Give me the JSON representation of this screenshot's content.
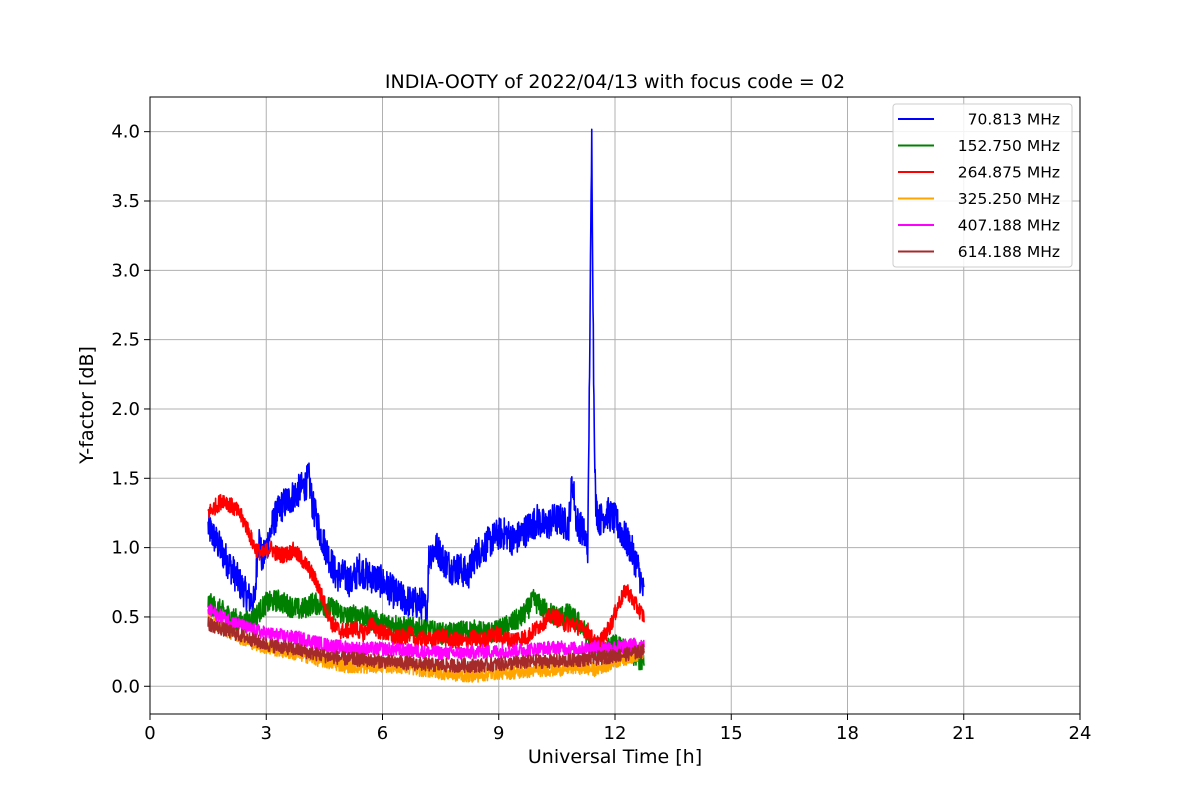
{
  "chart_data": {
    "type": "line",
    "title": "INDIA-OOTY of 2022/04/13 with focus code = 02",
    "xlabel": "Universal Time [h]",
    "ylabel": "Y-factor [dB]",
    "xlim": [
      0,
      24
    ],
    "ylim": [
      -0.2,
      4.25
    ],
    "xticks": [
      "0",
      "3",
      "6",
      "9",
      "12",
      "15",
      "18",
      "21",
      "24"
    ],
    "yticks": [
      "0.0",
      "0.5",
      "1.0",
      "1.5",
      "2.0",
      "2.5",
      "3.0",
      "3.5",
      "4.0"
    ],
    "grid": true,
    "legend_position": "top-right",
    "series": [
      {
        "name": "70.813 MHz",
        "color": "#0000ff",
        "x": [
          1.5,
          1.7,
          1.9,
          2.1,
          2.3,
          2.5,
          2.7,
          2.8,
          2.9,
          3.0,
          3.2,
          3.4,
          3.6,
          3.8,
          4.0,
          4.1,
          4.2,
          4.4,
          4.6,
          4.8,
          5.0,
          5.2,
          5.4,
          5.6,
          5.8,
          6.0,
          6.2,
          6.4,
          6.6,
          6.8,
          7.0,
          7.15,
          7.2,
          7.4,
          7.6,
          7.8,
          8.0,
          8.2,
          8.4,
          8.6,
          8.8,
          9.0,
          9.2,
          9.4,
          9.6,
          9.8,
          10.0,
          10.2,
          10.4,
          10.6,
          10.8,
          10.9,
          11.0,
          11.2,
          11.3,
          11.35,
          11.4,
          11.45,
          11.5,
          11.6,
          11.8,
          12.0,
          12.2,
          12.4,
          12.6,
          12.75
        ],
        "y": [
          1.15,
          1.05,
          0.95,
          0.85,
          0.75,
          0.65,
          0.6,
          1.1,
          0.9,
          1.0,
          1.2,
          1.3,
          1.35,
          1.4,
          1.45,
          1.5,
          1.3,
          1.1,
          0.95,
          0.8,
          0.8,
          0.75,
          0.85,
          0.8,
          0.78,
          0.75,
          0.7,
          0.65,
          0.62,
          0.6,
          0.6,
          0.55,
          0.95,
          1.0,
          0.9,
          0.85,
          0.85,
          0.8,
          0.95,
          1.0,
          1.05,
          1.1,
          1.1,
          1.05,
          1.1,
          1.15,
          1.2,
          1.15,
          1.2,
          1.2,
          1.15,
          1.5,
          1.2,
          1.1,
          1.0,
          2.5,
          3.95,
          2.2,
          1.3,
          1.2,
          1.25,
          1.2,
          1.1,
          1.0,
          0.85,
          0.65
        ],
        "noise": 0.12
      },
      {
        "name": "152.750 MHz",
        "color": "#008000",
        "x": [
          1.5,
          1.8,
          2.1,
          2.4,
          2.7,
          3.0,
          3.3,
          3.6,
          3.9,
          4.2,
          4.5,
          4.8,
          5.1,
          5.4,
          5.7,
          6.0,
          6.3,
          6.6,
          6.9,
          7.2,
          7.5,
          7.8,
          8.1,
          8.4,
          8.7,
          9.0,
          9.3,
          9.6,
          9.9,
          10.2,
          10.5,
          10.8,
          11.1,
          11.4,
          11.7,
          12.0,
          12.3,
          12.6,
          12.75
        ],
        "y": [
          0.6,
          0.55,
          0.5,
          0.45,
          0.5,
          0.6,
          0.62,
          0.58,
          0.55,
          0.6,
          0.58,
          0.55,
          0.5,
          0.52,
          0.48,
          0.45,
          0.45,
          0.42,
          0.42,
          0.4,
          0.38,
          0.38,
          0.4,
          0.4,
          0.38,
          0.4,
          0.45,
          0.5,
          0.62,
          0.55,
          0.5,
          0.52,
          0.45,
          0.3,
          0.25,
          0.3,
          0.25,
          0.2,
          0.15
        ],
        "noise": 0.08
      },
      {
        "name": "264.875 MHz",
        "color": "#ff0000",
        "x": [
          1.5,
          1.7,
          1.9,
          2.1,
          2.3,
          2.5,
          2.7,
          2.9,
          3.1,
          3.3,
          3.5,
          3.7,
          3.9,
          4.1,
          4.3,
          4.5,
          4.7,
          4.9,
          5.1,
          5.3,
          5.5,
          5.7,
          5.9,
          6.1,
          6.3,
          6.5,
          6.7,
          6.9,
          7.1,
          7.3,
          7.5,
          7.7,
          7.9,
          8.1,
          8.3,
          8.5,
          8.7,
          8.9,
          9.1,
          9.3,
          9.5,
          9.7,
          9.9,
          10.1,
          10.3,
          10.5,
          10.7,
          10.9,
          11.1,
          11.3,
          11.5,
          11.7,
          11.9,
          12.1,
          12.3,
          12.5,
          12.75
        ],
        "y": [
          1.25,
          1.3,
          1.35,
          1.3,
          1.25,
          1.15,
          1.0,
          0.95,
          1.0,
          0.95,
          0.95,
          0.98,
          0.92,
          0.85,
          0.75,
          0.6,
          0.45,
          0.4,
          0.4,
          0.42,
          0.38,
          0.45,
          0.4,
          0.38,
          0.35,
          0.35,
          0.38,
          0.33,
          0.35,
          0.32,
          0.38,
          0.33,
          0.33,
          0.32,
          0.35,
          0.33,
          0.35,
          0.38,
          0.35,
          0.33,
          0.35,
          0.35,
          0.4,
          0.45,
          0.5,
          0.5,
          0.45,
          0.45,
          0.42,
          0.4,
          0.3,
          0.35,
          0.45,
          0.6,
          0.7,
          0.6,
          0.5
        ],
        "noise": 0.06
      },
      {
        "name": "325.250 MHz",
        "color": "#ffa500",
        "x": [
          1.5,
          2.0,
          2.5,
          3.0,
          3.5,
          4.0,
          4.5,
          5.0,
          5.5,
          6.0,
          6.5,
          7.0,
          7.5,
          8.0,
          8.5,
          9.0,
          9.5,
          10.0,
          10.5,
          11.0,
          11.5,
          12.0,
          12.5,
          12.75
        ],
        "y": [
          0.48,
          0.4,
          0.33,
          0.28,
          0.25,
          0.22,
          0.18,
          0.15,
          0.14,
          0.15,
          0.14,
          0.12,
          0.1,
          0.08,
          0.08,
          0.1,
          0.1,
          0.12,
          0.12,
          0.14,
          0.12,
          0.18,
          0.22,
          0.25
        ],
        "noise": 0.05
      },
      {
        "name": "407.188 MHz",
        "color": "#ff00ff",
        "x": [
          1.5,
          2.0,
          2.5,
          3.0,
          3.5,
          4.0,
          4.5,
          5.0,
          5.5,
          6.0,
          6.5,
          7.0,
          7.5,
          8.0,
          8.5,
          9.0,
          9.5,
          10.0,
          10.5,
          11.0,
          11.5,
          12.0,
          12.5,
          12.75
        ],
        "y": [
          0.55,
          0.48,
          0.42,
          0.38,
          0.36,
          0.34,
          0.3,
          0.28,
          0.27,
          0.27,
          0.26,
          0.25,
          0.24,
          0.24,
          0.25,
          0.25,
          0.26,
          0.27,
          0.28,
          0.27,
          0.28,
          0.28,
          0.3,
          0.3
        ],
        "noise": 0.05
      },
      {
        "name": "614.188 MHz",
        "color": "#a52a2a",
        "x": [
          1.5,
          2.0,
          2.5,
          3.0,
          3.5,
          4.0,
          4.5,
          5.0,
          5.5,
          6.0,
          6.5,
          7.0,
          7.5,
          8.0,
          8.5,
          9.0,
          9.5,
          10.0,
          10.5,
          11.0,
          11.5,
          12.0,
          12.5,
          12.75
        ],
        "y": [
          0.45,
          0.4,
          0.35,
          0.3,
          0.28,
          0.25,
          0.22,
          0.2,
          0.19,
          0.18,
          0.17,
          0.16,
          0.15,
          0.15,
          0.15,
          0.16,
          0.17,
          0.18,
          0.18,
          0.19,
          0.2,
          0.22,
          0.24,
          0.26
        ],
        "noise": 0.05
      }
    ]
  }
}
